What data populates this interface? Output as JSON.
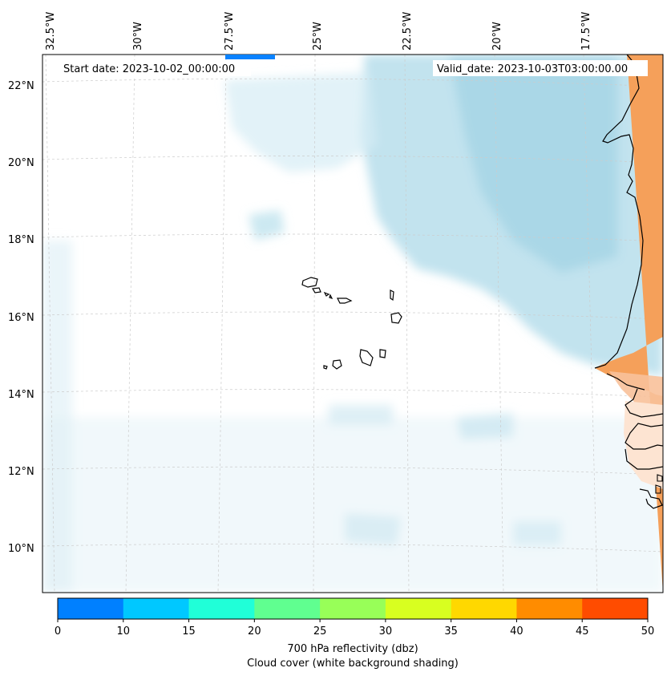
{
  "header": {
    "start_date": "Start date: 2023-10-02_00:00:00",
    "valid_date": "Valid_date: 2023-10-03T03:00:00.00"
  },
  "map": {
    "longitude_labels": [
      "32.5°W",
      "30°W",
      "27.5°W",
      "25°W",
      "22.5°W",
      "20°W",
      "17.5°W"
    ],
    "latitude_labels": [
      "22°N",
      "20°N",
      "18°N",
      "16°N",
      "14°N",
      "12°N",
      "10°N"
    ],
    "land_color": "#f5a05a",
    "cloud_color": "#a9d8e8",
    "coast_color": "#000000"
  },
  "colorbar": {
    "ticks": [
      "0",
      "10",
      "15",
      "20",
      "25",
      "30",
      "35",
      "40",
      "45",
      "50"
    ],
    "colors": [
      "#0080ff",
      "#00c8ff",
      "#20ffd8",
      "#60ff90",
      "#98ff58",
      "#d8ff20",
      "#ffd800",
      "#ff8c00",
      "#ff4c00"
    ],
    "label_line1": "700 hPa reflectivity (dbz)",
    "label_line2": "Cloud cover (white background shading)"
  }
}
